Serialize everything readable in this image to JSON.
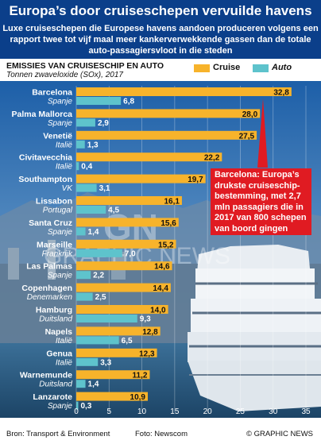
{
  "title": "Europa’s door cruiseschepen vervuilde havens",
  "subtitle_lines": [
    "Luxe cruiseschepen die Europese havens aandoen produceren volgens een",
    "rapport twee tot vijf maal meer kankerverwekkende gassen dan de totale",
    "auto-passagiersvloot in die steden"
  ],
  "chart_heading": "EMISSIES VAN CRUISESCHIP EN AUTO",
  "chart_unit": "Tonnen zwaveloxide (SOx), 2017",
  "callout": "Barcelona: Europa’s drukste cruiseschip-bestemming, met 2,7 mln passagiers die in 2017 van 800 schepen van boord gingen",
  "watermark": "GRAPHIC NEWS",
  "footer": {
    "source": "Bron: Transport & Environment",
    "photo": "Foto: Newscom",
    "credit": "© GRAPHIC NEWS"
  },
  "colors": {
    "header": "#0b3f8a",
    "cruise": "#f7b32b",
    "auto": "#5ec3cc",
    "callout": "#e01b22"
  },
  "chart_data": {
    "type": "bar",
    "orientation": "horizontal",
    "xlim": [
      0,
      35
    ],
    "xticks": [
      0,
      5,
      10,
      15,
      20,
      25,
      30,
      35
    ],
    "legend_position": "top-right",
    "series": [
      {
        "name": "Cruise",
        "values": [
          "32,8",
          "28,0",
          "27,5",
          "22,2",
          "19,7",
          "16,1",
          "15,6",
          "15,2",
          "14,6",
          "14,4",
          "14,0",
          "12,8",
          "12,3",
          "11,2",
          "10,9"
        ]
      },
      {
        "name": "Auto",
        "values": [
          "6,8",
          "2,9",
          "1,3",
          "0,4",
          "3,1",
          "4,5",
          "1,4",
          "7,0",
          "2,2",
          "2,5",
          "9,3",
          "6,5",
          "3,3",
          "1,4",
          "0,3"
        ]
      }
    ],
    "categories": [
      {
        "city": "Barcelona",
        "country": "Spanje"
      },
      {
        "city": "Palma Mallorca",
        "country": "Spanje"
      },
      {
        "city": "Venetië",
        "country": "Italië"
      },
      {
        "city": "Civitavecchia",
        "country": "Italië"
      },
      {
        "city": "Southampton",
        "country": "VK"
      },
      {
        "city": "Lissabon",
        "country": "Portugal"
      },
      {
        "city": "Santa Cruz",
        "country": "Spanje"
      },
      {
        "city": "Marseille",
        "country": "Frankrijk"
      },
      {
        "city": "Las Palmas",
        "country": "Spanje"
      },
      {
        "city": "Copenhagen",
        "country": "Denemarken"
      },
      {
        "city": "Hamburg",
        "country": "Duitsland"
      },
      {
        "city": "Napels",
        "country": "Italië"
      },
      {
        "city": "Genua",
        "country": "Italië"
      },
      {
        "city": "Warnemunde",
        "country": "Duitsland"
      },
      {
        "city": "Lanzarote",
        "country": "Spanje"
      }
    ]
  }
}
